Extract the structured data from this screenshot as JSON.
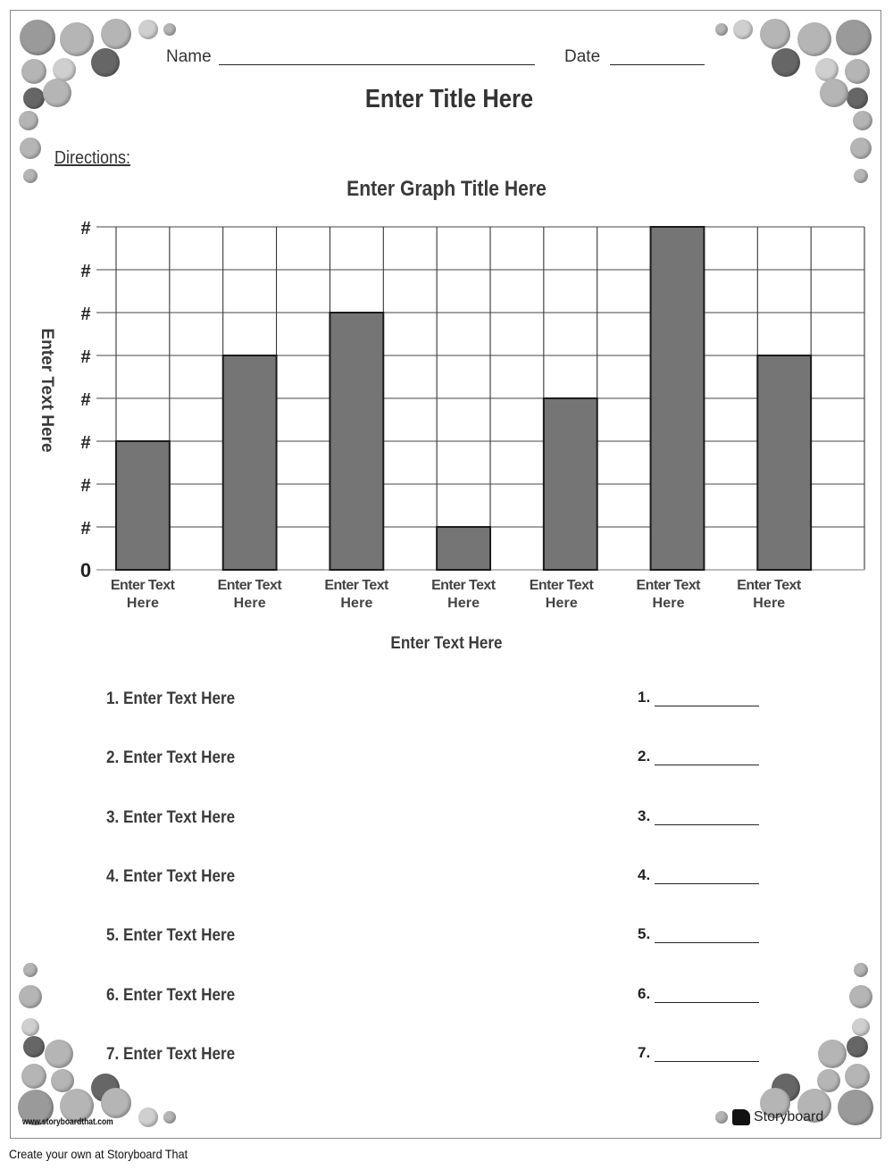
{
  "header": {
    "name_label": "Name",
    "date_label": "Date",
    "title": "Enter Title Here",
    "directions_label": "Directions:"
  },
  "chart_data": {
    "type": "bar",
    "title": "Enter Graph Title Here",
    "xlabel": "Enter Text Here",
    "ylabel": "Enter Text Here",
    "categories": [
      "Enter Text Here",
      "Enter Text Here",
      "Enter Text Here",
      "Enter Text Here",
      "Enter Text Here",
      "Enter Text Here",
      "Enter Text Here"
    ],
    "category_lines": [
      [
        "Enter Text",
        "Here"
      ],
      [
        "Enter Text",
        "Here"
      ],
      [
        "Enter Text",
        "Here"
      ],
      [
        "Enter Text",
        "Here"
      ],
      [
        "Enter Text",
        "Here"
      ],
      [
        "Enter Text",
        "Here"
      ],
      [
        "Enter Text",
        "Here"
      ]
    ],
    "values": [
      3,
      5,
      6,
      1,
      4,
      8,
      5
    ],
    "ylim": [
      0,
      8
    ],
    "y_tick_labels": [
      "0",
      "#",
      "#",
      "#",
      "#",
      "#",
      "#",
      "#",
      "#"
    ],
    "grid": true,
    "bar_color": "#757575"
  },
  "questions": [
    {
      "text": "1. Enter Text Here",
      "answer_label": "1."
    },
    {
      "text": "2. Enter Text Here",
      "answer_label": "2."
    },
    {
      "text": "3. Enter Text Here",
      "answer_label": "3."
    },
    {
      "text": "4. Enter Text Here",
      "answer_label": "4."
    },
    {
      "text": "5. Enter Text Here",
      "answer_label": "5."
    },
    {
      "text": "6. Enter Text Here",
      "answer_label": "6."
    },
    {
      "text": "7. Enter Text Here",
      "answer_label": "7."
    }
  ],
  "branding": {
    "url": "www.storyboardthat.com",
    "logo_text": "Storyboard",
    "footer": "Create your own at Storyboard That"
  },
  "decoration": {
    "icon": "emoji-face-icon",
    "colors": [
      "#9a9a9a",
      "#b5b5b5",
      "#666666",
      "#cfcfcf"
    ]
  }
}
